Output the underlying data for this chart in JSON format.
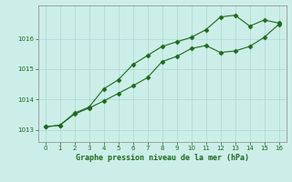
{
  "line1_x": [
    0,
    1,
    2,
    3,
    4,
    5,
    6,
    7,
    8,
    9,
    10,
    11,
    12,
    13,
    14,
    15,
    16
  ],
  "line1_y": [
    1013.1,
    1013.15,
    1013.55,
    1013.75,
    1014.35,
    1014.65,
    1015.15,
    1015.45,
    1015.75,
    1015.9,
    1016.05,
    1016.3,
    1016.72,
    1016.78,
    1016.42,
    1016.62,
    1016.52
  ],
  "line2_x": [
    0,
    1,
    2,
    3,
    4,
    5,
    6,
    7,
    8,
    9,
    10,
    11,
    12,
    13,
    14,
    15,
    16
  ],
  "line2_y": [
    1013.1,
    1013.15,
    1013.52,
    1013.72,
    1013.95,
    1014.2,
    1014.45,
    1014.72,
    1015.25,
    1015.42,
    1015.68,
    1015.78,
    1015.55,
    1015.6,
    1015.75,
    1016.05,
    1016.48
  ],
  "line_color": "#1a6b1a",
  "bg_color": "#cceee8",
  "grid_color": "#aad8d0",
  "xlabel": "Graphe pression niveau de la mer (hPa)",
  "xlim": [
    -0.5,
    16.5
  ],
  "ylim": [
    1012.6,
    1017.1
  ],
  "yticks": [
    1013,
    1014,
    1015,
    1016
  ],
  "xticks": [
    0,
    1,
    2,
    3,
    4,
    5,
    6,
    7,
    8,
    9,
    10,
    11,
    12,
    13,
    14,
    15,
    16
  ]
}
